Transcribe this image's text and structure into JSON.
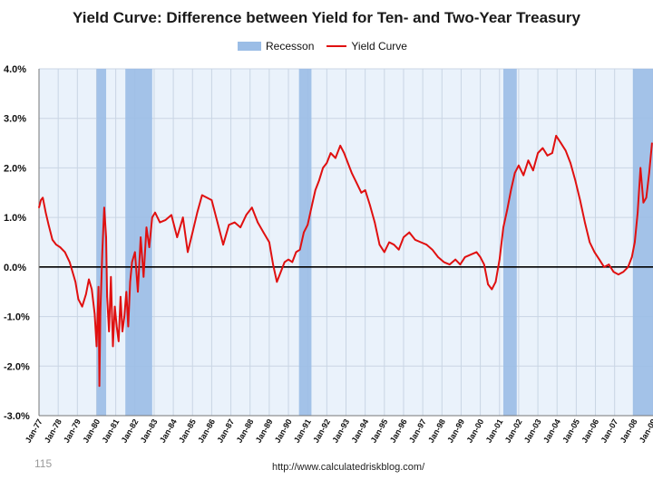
{
  "page_number": "115",
  "source_url": "http://www.calculatedriskblog.com/",
  "colors": {
    "line": "#e01010",
    "recession": "#9bbde6",
    "plot_bg": "#eaf2fb",
    "grid": "#c9d5e4",
    "zero_line": "#000000"
  },
  "chart_data": {
    "type": "line",
    "title": "Yield Curve: Difference between Yield for Ten- and Two-Year Treasury",
    "xlabel": "",
    "ylabel": "",
    "ylim": [
      -3.0,
      4.0
    ],
    "xlim": [
      1977.0,
      2009.0
    ],
    "y_ticks": [
      {
        "value": 4.0,
        "label": "4.0%"
      },
      {
        "value": 3.0,
        "label": "3.0%"
      },
      {
        "value": 2.0,
        "label": "2.0%"
      },
      {
        "value": 1.0,
        "label": "1.0%"
      },
      {
        "value": 0.0,
        "label": "0.0%"
      },
      {
        "value": -1.0,
        "label": "-1.0%"
      },
      {
        "value": -2.0,
        "label": "-2.0%"
      },
      {
        "value": -3.0,
        "label": "-3.0%"
      }
    ],
    "x_ticks": [
      {
        "value": 1977,
        "label": "Jan-77"
      },
      {
        "value": 1978,
        "label": "Jan-78"
      },
      {
        "value": 1979,
        "label": "Jan-79"
      },
      {
        "value": 1980,
        "label": "Jan-80"
      },
      {
        "value": 1981,
        "label": "Jan-81"
      },
      {
        "value": 1982,
        "label": "Jan-82"
      },
      {
        "value": 1983,
        "label": "Jan-83"
      },
      {
        "value": 1984,
        "label": "Jan-84"
      },
      {
        "value": 1985,
        "label": "Jan-85"
      },
      {
        "value": 1986,
        "label": "Jan-86"
      },
      {
        "value": 1987,
        "label": "Jan-87"
      },
      {
        "value": 1988,
        "label": "Jan-88"
      },
      {
        "value": 1989,
        "label": "Jan-89"
      },
      {
        "value": 1990,
        "label": "Jan-90"
      },
      {
        "value": 1991,
        "label": "Jan-91"
      },
      {
        "value": 1992,
        "label": "Jan-92"
      },
      {
        "value": 1993,
        "label": "Jan-93"
      },
      {
        "value": 1994,
        "label": "Jan-94"
      },
      {
        "value": 1995,
        "label": "Jan-95"
      },
      {
        "value": 1996,
        "label": "Jan-96"
      },
      {
        "value": 1997,
        "label": "Jan-97"
      },
      {
        "value": 1998,
        "label": "Jan-98"
      },
      {
        "value": 1999,
        "label": "Jan-99"
      },
      {
        "value": 2000,
        "label": "Jan-00"
      },
      {
        "value": 2001,
        "label": "Jan-01"
      },
      {
        "value": 2002,
        "label": "Jan-02"
      },
      {
        "value": 2003,
        "label": "Jan-03"
      },
      {
        "value": 2004,
        "label": "Jan-04"
      },
      {
        "value": 2005,
        "label": "Jan-05"
      },
      {
        "value": 2006,
        "label": "Jan-06"
      },
      {
        "value": 2007,
        "label": "Jan-07"
      },
      {
        "value": 2008,
        "label": "Jan-08"
      },
      {
        "value": 2009,
        "label": "Jan-09"
      }
    ],
    "legend": [
      {
        "name": "Recesson",
        "style": "bar"
      },
      {
        "name": "Yield Curve",
        "style": "line"
      }
    ],
    "legend_position": "top-center",
    "recessions": [
      {
        "start": 1980.0,
        "end": 1980.5
      },
      {
        "start": 1981.5,
        "end": 1982.9
      },
      {
        "start": 1990.55,
        "end": 1991.2
      },
      {
        "start": 2001.2,
        "end": 2001.9
      },
      {
        "start": 2007.95,
        "end": 2009.0
      }
    ],
    "series": [
      {
        "name": "Yield Curve",
        "x": [
          1977.0,
          1977.1,
          1977.2,
          1977.35,
          1977.5,
          1977.7,
          1977.9,
          1978.1,
          1978.35,
          1978.6,
          1978.9,
          1979.05,
          1979.25,
          1979.45,
          1979.6,
          1979.75,
          1979.9,
          1980.0,
          1980.1,
          1980.15,
          1980.2,
          1980.3,
          1980.4,
          1980.5,
          1980.55,
          1980.65,
          1980.75,
          1980.85,
          1980.95,
          1981.05,
          1981.15,
          1981.25,
          1981.35,
          1981.45,
          1981.55,
          1981.65,
          1981.75,
          1981.85,
          1982.0,
          1982.15,
          1982.3,
          1982.45,
          1982.6,
          1982.75,
          1982.9,
          1983.05,
          1983.3,
          1983.6,
          1983.9,
          1984.2,
          1984.5,
          1984.75,
          1985.0,
          1985.25,
          1985.5,
          1985.75,
          1986.0,
          1986.3,
          1986.6,
          1986.9,
          1987.2,
          1987.5,
          1987.8,
          1988.1,
          1988.4,
          1988.7,
          1989.0,
          1989.2,
          1989.4,
          1989.6,
          1989.8,
          1990.0,
          1990.2,
          1990.4,
          1990.6,
          1990.8,
          1991.0,
          1991.2,
          1991.4,
          1991.6,
          1991.8,
          1992.0,
          1992.2,
          1992.45,
          1992.7,
          1992.9,
          1993.1,
          1993.3,
          1993.55,
          1993.8,
          1994.0,
          1994.25,
          1994.5,
          1994.75,
          1995.0,
          1995.25,
          1995.5,
          1995.75,
          1996.0,
          1996.3,
          1996.6,
          1996.9,
          1997.2,
          1997.5,
          1997.8,
          1998.1,
          1998.4,
          1998.7,
          1998.95,
          1999.2,
          1999.5,
          1999.8,
          2000.0,
          2000.2,
          2000.4,
          2000.6,
          2000.8,
          2001.0,
          2001.2,
          2001.4,
          2001.6,
          2001.8,
          2002.0,
          2002.25,
          2002.5,
          2002.75,
          2003.0,
          2003.25,
          2003.5,
          2003.75,
          2003.95,
          2004.2,
          2004.45,
          2004.7,
          2004.95,
          2005.2,
          2005.45,
          2005.7,
          2005.95,
          2006.2,
          2006.45,
          2006.7,
          2006.95,
          2007.2,
          2007.45,
          2007.7,
          2007.9,
          2008.05,
          2008.2,
          2008.35,
          2008.5,
          2008.65,
          2008.8,
          2008.95
        ],
        "values": [
          1.2,
          1.35,
          1.4,
          1.1,
          0.85,
          0.55,
          0.45,
          0.4,
          0.3,
          0.1,
          -0.3,
          -0.65,
          -0.8,
          -0.55,
          -0.25,
          -0.45,
          -0.95,
          -1.6,
          -0.4,
          -2.4,
          -0.9,
          0.3,
          1.2,
          0.6,
          -0.6,
          -1.3,
          -0.2,
          -1.6,
          -0.8,
          -1.2,
          -1.5,
          -0.6,
          -1.3,
          -1.0,
          -0.5,
          -1.2,
          -0.3,
          0.1,
          0.3,
          -0.5,
          0.6,
          -0.2,
          0.8,
          0.4,
          1.0,
          1.1,
          0.9,
          0.95,
          1.05,
          0.6,
          1.0,
          0.3,
          0.7,
          1.1,
          1.45,
          1.4,
          1.35,
          0.9,
          0.45,
          0.85,
          0.9,
          0.8,
          1.05,
          1.2,
          0.9,
          0.7,
          0.5,
          0.05,
          -0.3,
          -0.1,
          0.1,
          0.15,
          0.1,
          0.3,
          0.35,
          0.7,
          0.85,
          1.2,
          1.55,
          1.75,
          2.0,
          2.1,
          2.3,
          2.2,
          2.45,
          2.3,
          2.1,
          1.9,
          1.7,
          1.5,
          1.55,
          1.25,
          0.9,
          0.45,
          0.3,
          0.5,
          0.45,
          0.35,
          0.6,
          0.7,
          0.55,
          0.5,
          0.45,
          0.35,
          0.2,
          0.1,
          0.05,
          0.15,
          0.05,
          0.2,
          0.25,
          0.3,
          0.2,
          0.05,
          -0.35,
          -0.45,
          -0.3,
          0.15,
          0.8,
          1.15,
          1.55,
          1.9,
          2.05,
          1.85,
          2.15,
          1.95,
          2.3,
          2.4,
          2.25,
          2.3,
          2.65,
          2.5,
          2.35,
          2.1,
          1.75,
          1.35,
          0.9,
          0.5,
          0.3,
          0.15,
          0.0,
          0.05,
          -0.1,
          -0.15,
          -0.1,
          0.0,
          0.2,
          0.5,
          1.1,
          2.0,
          1.3,
          1.4,
          1.9,
          2.5
        ]
      }
    ]
  }
}
